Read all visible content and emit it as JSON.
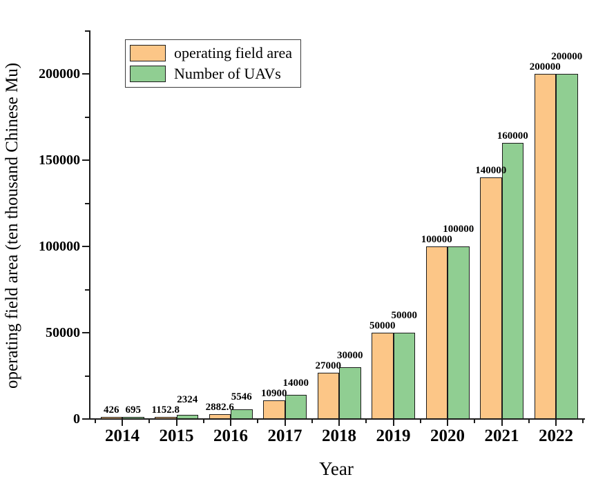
{
  "figure": {
    "background": "#ffffff",
    "axis_color": "#1a1a1a",
    "text_color": "#000000"
  },
  "chart_data": {
    "type": "bar",
    "title": "",
    "xlabel": "Year",
    "ylabel": "operating field area (ten thousand Chinese Mu)",
    "categories": [
      "2014",
      "2015",
      "2016",
      "2017",
      "2018",
      "2019",
      "2020",
      "2021",
      "2022"
    ],
    "series": [
      {
        "name": "operating field area",
        "color": "#FCC687",
        "border_color": "#1a1a1a",
        "values": [
          426,
          1152.8,
          2882.6,
          10900,
          27000,
          50000,
          100000,
          140000,
          200000
        ],
        "labels": [
          "426",
          "1152.8",
          "2882.6",
          "10900",
          "27000",
          "50000",
          "100000",
          "140000",
          "200000"
        ]
      },
      {
        "name": "Number of UAVs",
        "color": "#90CE92",
        "border_color": "#1a1a1a",
        "values": [
          695,
          2324,
          5546,
          14000,
          30000,
          50000,
          100000,
          160000,
          200000
        ],
        "labels": [
          "695",
          "2324",
          "5546",
          "14000",
          "30000",
          "50000",
          "100000",
          "160000",
          "200000"
        ]
      }
    ],
    "ylim": [
      0,
      225000
    ],
    "yticks": [
      0,
      50000,
      100000,
      150000,
      200000
    ],
    "ytick_labels": [
      "0",
      "50000",
      "100000",
      "150000",
      "200000"
    ],
    "minor_tick_step_y": 25000,
    "legend_position": "top-left",
    "grid": false
  }
}
